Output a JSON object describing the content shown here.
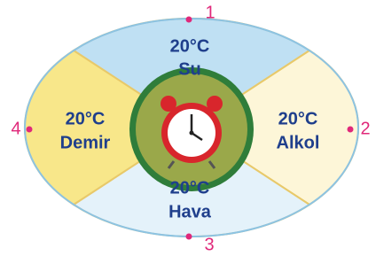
{
  "sectors": [
    {
      "temperature": "20°C",
      "substance": "Su"
    },
    {
      "temperature": "20°C",
      "substance": "Alkol"
    },
    {
      "temperature": "20°C",
      "substance": "Hava"
    },
    {
      "temperature": "20°C",
      "substance": "Demir"
    }
  ],
  "points": [
    "1",
    "2",
    "3",
    "4"
  ]
}
